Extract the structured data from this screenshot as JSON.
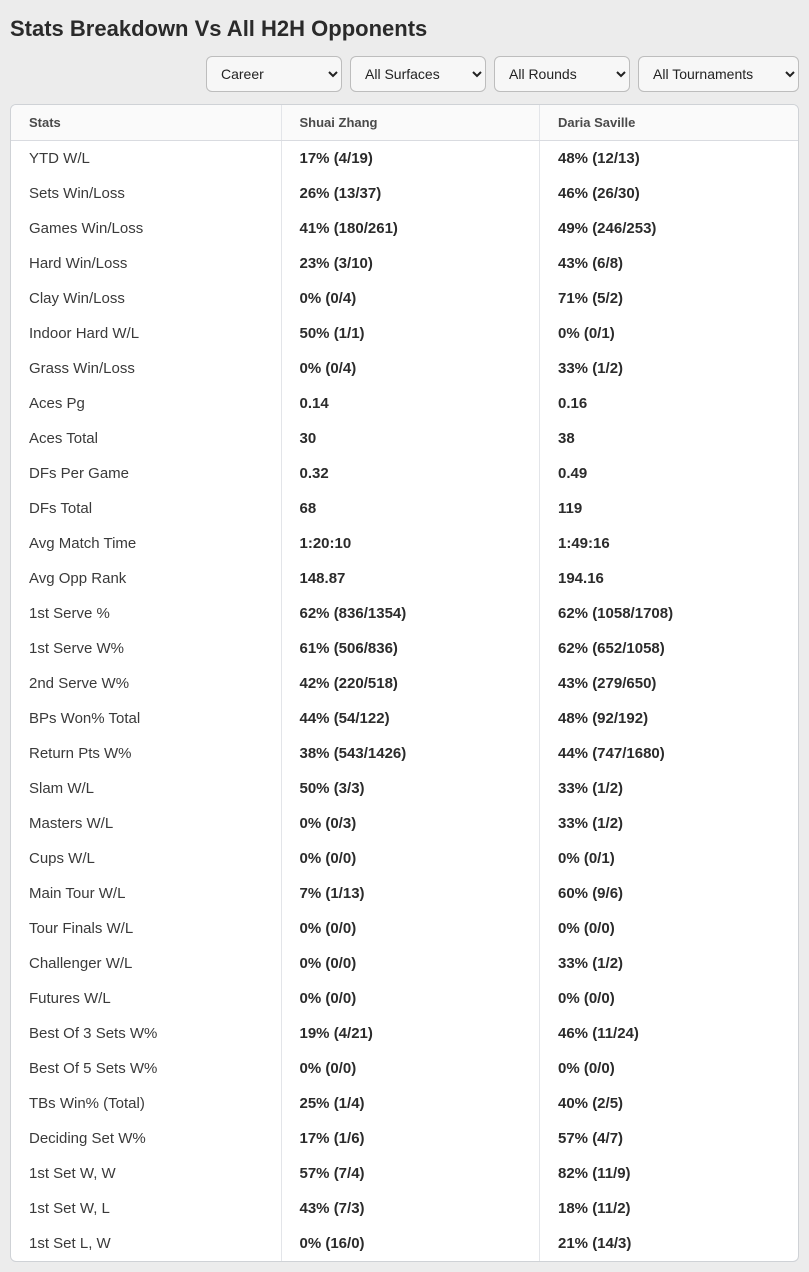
{
  "title": "Stats Breakdown Vs All H2H Opponents",
  "filters": {
    "period": {
      "selected": "Career",
      "options": [
        "Career"
      ]
    },
    "surface": {
      "selected": "All Surfaces",
      "options": [
        "All Surfaces"
      ]
    },
    "rounds": {
      "selected": "All Rounds",
      "options": [
        "All Rounds"
      ]
    },
    "tournaments": {
      "selected": "All Tournaments",
      "options": [
        "All Tournaments"
      ]
    }
  },
  "table": {
    "headers": {
      "stats": "Stats",
      "p1": "Shuai Zhang",
      "p2": "Daria Saville"
    },
    "rows": [
      {
        "stat": "YTD W/L",
        "p1": "17% (4/19)",
        "p2": "48% (12/13)"
      },
      {
        "stat": "Sets Win/Loss",
        "p1": "26% (13/37)",
        "p2": "46% (26/30)"
      },
      {
        "stat": "Games Win/Loss",
        "p1": "41% (180/261)",
        "p2": "49% (246/253)"
      },
      {
        "stat": "Hard Win/Loss",
        "p1": "23% (3/10)",
        "p2": "43% (6/8)"
      },
      {
        "stat": "Clay Win/Loss",
        "p1": "0% (0/4)",
        "p2": "71% (5/2)"
      },
      {
        "stat": "Indoor Hard W/L",
        "p1": "50% (1/1)",
        "p2": "0% (0/1)"
      },
      {
        "stat": "Grass Win/Loss",
        "p1": "0% (0/4)",
        "p2": "33% (1/2)"
      },
      {
        "stat": "Aces Pg",
        "p1": "0.14",
        "p2": "0.16"
      },
      {
        "stat": "Aces Total",
        "p1": "30",
        "p2": "38"
      },
      {
        "stat": "DFs Per Game",
        "p1": "0.32",
        "p2": "0.49"
      },
      {
        "stat": "DFs Total",
        "p1": "68",
        "p2": "119"
      },
      {
        "stat": "Avg Match Time",
        "p1": "1:20:10",
        "p2": "1:49:16"
      },
      {
        "stat": "Avg Opp Rank",
        "p1": "148.87",
        "p2": "194.16"
      },
      {
        "stat": "1st Serve %",
        "p1": "62% (836/1354)",
        "p2": "62% (1058/1708)"
      },
      {
        "stat": "1st Serve W%",
        "p1": "61% (506/836)",
        "p2": "62% (652/1058)"
      },
      {
        "stat": "2nd Serve W%",
        "p1": "42% (220/518)",
        "p2": "43% (279/650)"
      },
      {
        "stat": "BPs Won% Total",
        "p1": "44% (54/122)",
        "p2": "48% (92/192)"
      },
      {
        "stat": "Return Pts W%",
        "p1": "38% (543/1426)",
        "p2": "44% (747/1680)"
      },
      {
        "stat": "Slam W/L",
        "p1": "50% (3/3)",
        "p2": "33% (1/2)"
      },
      {
        "stat": "Masters W/L",
        "p1": "0% (0/3)",
        "p2": "33% (1/2)"
      },
      {
        "stat": "Cups W/L",
        "p1": "0% (0/0)",
        "p2": "0% (0/1)"
      },
      {
        "stat": "Main Tour W/L",
        "p1": "7% (1/13)",
        "p2": "60% (9/6)"
      },
      {
        "stat": "Tour Finals W/L",
        "p1": "0% (0/0)",
        "p2": "0% (0/0)"
      },
      {
        "stat": "Challenger W/L",
        "p1": "0% (0/0)",
        "p2": "33% (1/2)"
      },
      {
        "stat": "Futures W/L",
        "p1": "0% (0/0)",
        "p2": "0% (0/0)"
      },
      {
        "stat": "Best Of 3 Sets W%",
        "p1": "19% (4/21)",
        "p2": "46% (11/24)"
      },
      {
        "stat": "Best Of 5 Sets W%",
        "p1": "0% (0/0)",
        "p2": "0% (0/0)"
      },
      {
        "stat": "TBs Win% (Total)",
        "p1": "25% (1/4)",
        "p2": "40% (2/5)"
      },
      {
        "stat": "Deciding Set W%",
        "p1": "17% (1/6)",
        "p2": "57% (4/7)"
      },
      {
        "stat": "1st Set W, W",
        "p1": "57% (7/4)",
        "p2": "82% (11/9)"
      },
      {
        "stat": "1st Set W, L",
        "p1": "43% (7/3)",
        "p2": "18% (11/2)"
      },
      {
        "stat": "1st Set L, W",
        "p1": "0% (16/0)",
        "p2": "21% (14/3)"
      }
    ]
  },
  "colors": {
    "page_bg": "#ececec",
    "card_bg": "#ffffff",
    "border": "#cfd2d6",
    "header_bg": "#fafafa",
    "row_divider": "#e3e5e9",
    "text": "#222222",
    "value_text": "#2b2b2b"
  }
}
